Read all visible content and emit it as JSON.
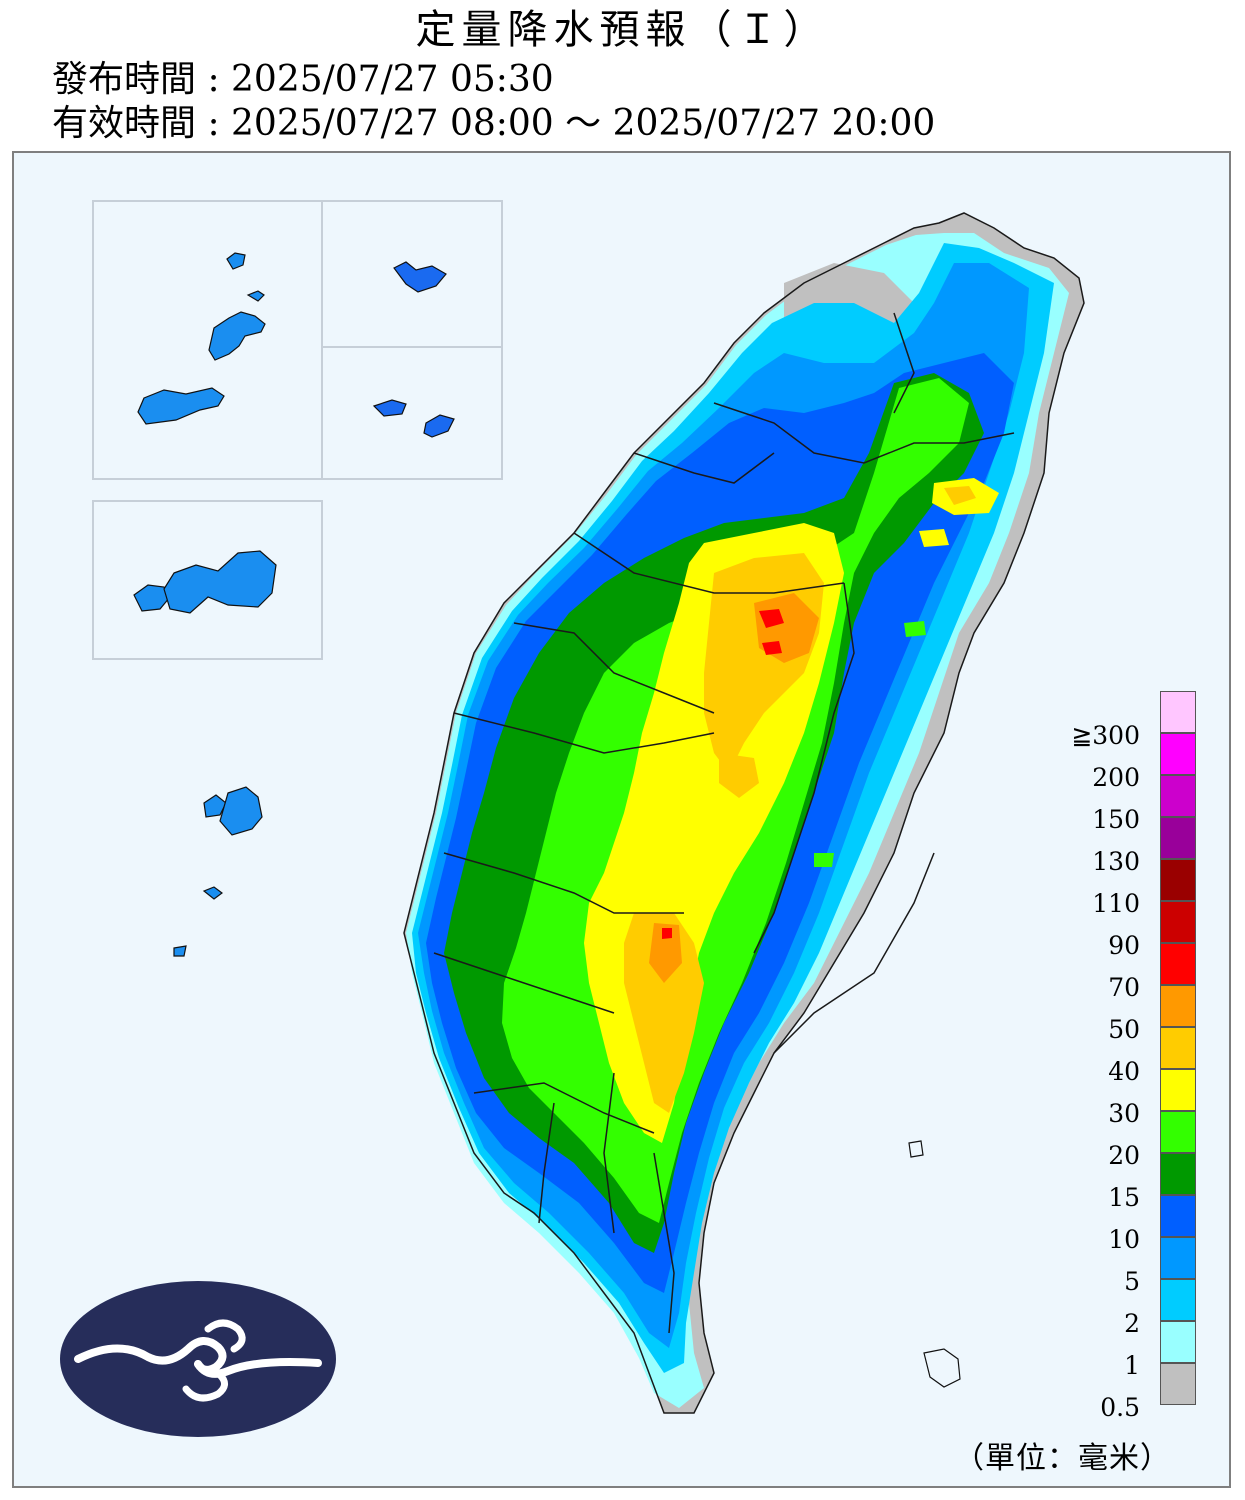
{
  "title": "定量降水預報（Ｉ）",
  "issue_time": "發布時間 : 2025/07/27 05:30",
  "valid_time": "有效時間 : 2025/07/27 08:00 ～ 2025/07/27 20:00",
  "legend": {
    "unit": "（單位：毫米）",
    "items": [
      {
        "label": "≧300",
        "color": "#ffc6ff"
      },
      {
        "label": "200",
        "color": "#ff00ff"
      },
      {
        "label": "150",
        "color": "#cc00cc"
      },
      {
        "label": "130",
        "color": "#99009a"
      },
      {
        "label": "110",
        "color": "#9a0000"
      },
      {
        "label": "90",
        "color": "#cc0000"
      },
      {
        "label": "70",
        "color": "#ff0000"
      },
      {
        "label": "50",
        "color": "#ff9900"
      },
      {
        "label": "40",
        "color": "#ffcc00"
      },
      {
        "label": "30",
        "color": "#ffff00"
      },
      {
        "label": "20",
        "color": "#33ff00"
      },
      {
        "label": "15",
        "color": "#009900"
      },
      {
        "label": "10",
        "color": "#005fff"
      },
      {
        "label": "5",
        "color": "#0098ff"
      },
      {
        "label": "2",
        "color": "#00ccff"
      },
      {
        "label": "1",
        "color": "#99ffff"
      },
      {
        "label": "0.5",
        "color": "#c0c0c0"
      }
    ]
  },
  "colors": {
    "background": "#eef7fd",
    "frame": "#7f7f7f",
    "logo_bg": "#262d5a",
    "outline": "#1a1a1a"
  }
}
